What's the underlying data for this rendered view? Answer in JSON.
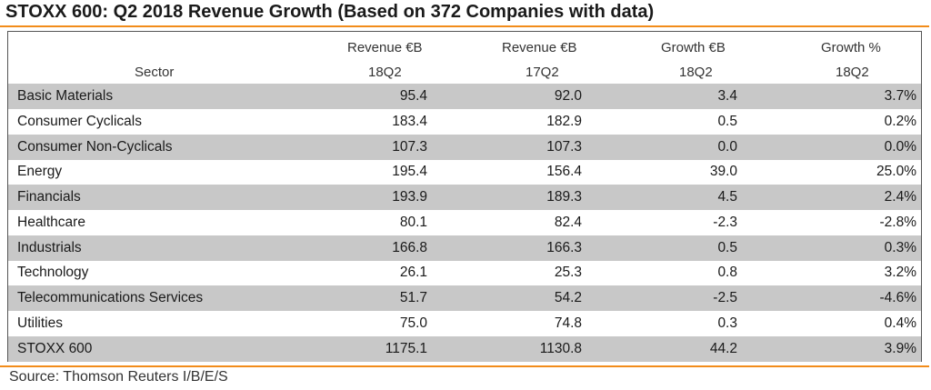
{
  "title": "STOXX 600: Q2 2018 Revenue Growth (Based on 372 Companies with data)",
  "source": "Source: Thomson Reuters I/B/E/S",
  "colors": {
    "accent_rule": "#f28c1a",
    "shaded_row": "#c8c8c8"
  },
  "headers": {
    "sector": "Sector",
    "rev18": [
      "Revenue €B",
      "18Q2"
    ],
    "rev17": [
      "Revenue €B",
      "17Q2"
    ],
    "growth_eur": [
      "Growth €B",
      "18Q2"
    ],
    "growth_pct": [
      "Growth %",
      "18Q2"
    ]
  },
  "chart_data": {
    "type": "table",
    "title": "STOXX 600: Q2 2018 Revenue Growth (Based on 372 Companies with data)",
    "columns": [
      "Sector",
      "Revenue €B 18Q2",
      "Revenue €B 17Q2",
      "Growth €B 18Q2",
      "Growth % 18Q2"
    ],
    "rows": [
      [
        "Basic Materials",
        "95.4",
        "92.0",
        "3.4",
        "3.7%"
      ],
      [
        "Consumer Cyclicals",
        "183.4",
        "182.9",
        "0.5",
        "0.2%"
      ],
      [
        "Consumer Non-Cyclicals",
        "107.3",
        "107.3",
        "0.0",
        "0.0%"
      ],
      [
        "Energy",
        "195.4",
        "156.4",
        "39.0",
        "25.0%"
      ],
      [
        "Financials",
        "193.9",
        "189.3",
        "4.5",
        "2.4%"
      ],
      [
        "Healthcare",
        "80.1",
        "82.4",
        "-2.3",
        "-2.8%"
      ],
      [
        "Industrials",
        "166.8",
        "166.3",
        "0.5",
        "0.3%"
      ],
      [
        "Technology",
        "26.1",
        "25.3",
        "0.8",
        "3.2%"
      ],
      [
        "Telecommunications Services",
        "51.7",
        "54.2",
        "-2.5",
        "-4.6%"
      ],
      [
        "Utilities",
        "75.0",
        "74.8",
        "0.3",
        "0.4%"
      ],
      [
        "STOXX 600",
        "1175.1",
        "1130.8",
        "44.2",
        "3.9%"
      ]
    ]
  }
}
